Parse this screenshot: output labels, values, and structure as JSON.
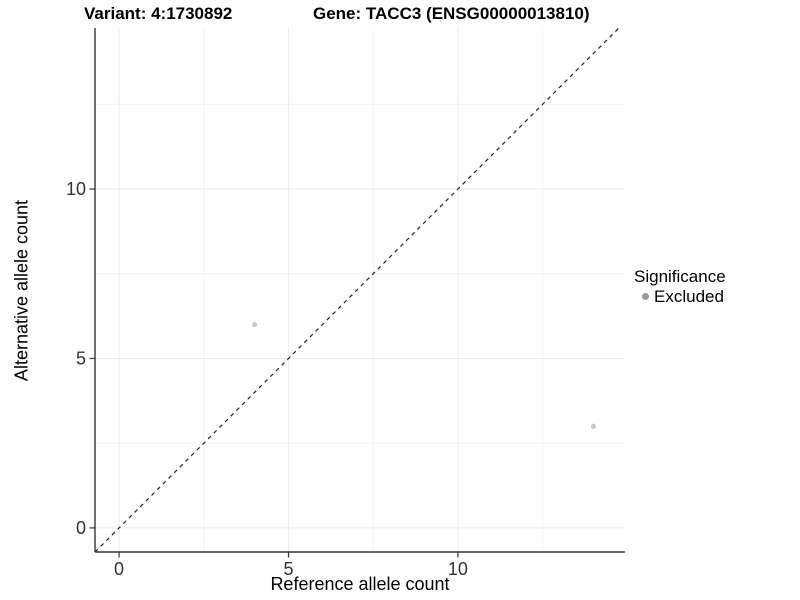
{
  "chart_data": {
    "type": "scatter",
    "titles": {
      "left": "Variant: 4:1730892",
      "right": "Gene: TACC3 (ENSG00000013810)"
    },
    "xlabel": "Reference allele count",
    "ylabel": "Alternative allele count",
    "x_ticks": [
      0,
      5,
      10
    ],
    "y_ticks": [
      0,
      5,
      10
    ],
    "x_minor_ticks": [
      2.5,
      7.5,
      12.5
    ],
    "y_minor_ticks": [
      2.5,
      7.5,
      12.5
    ],
    "xlim": [
      -0.71,
      14.93
    ],
    "ylim": [
      -0.71,
      14.75
    ],
    "grid": true,
    "identity_line": {
      "shown": true,
      "style": "dashed",
      "slope": 1,
      "intercept": 0
    },
    "series": [
      {
        "name": "Excluded",
        "points": [
          {
            "x": 4,
            "y": 6
          },
          {
            "x": 14,
            "y": 3
          }
        ]
      }
    ],
    "legend": {
      "title": "Significance",
      "position": "right",
      "items": [
        {
          "label": "Excluded",
          "color": "#9a9a9a"
        }
      ]
    },
    "colors": {
      "point": "#c8c8c8",
      "legend_dot": "#9a9a9a",
      "grid_major": "#ececec",
      "grid_minor": "#f4f4f4",
      "axis": "#333333",
      "tick_label": "#333333",
      "identity_line": "#222222"
    }
  }
}
